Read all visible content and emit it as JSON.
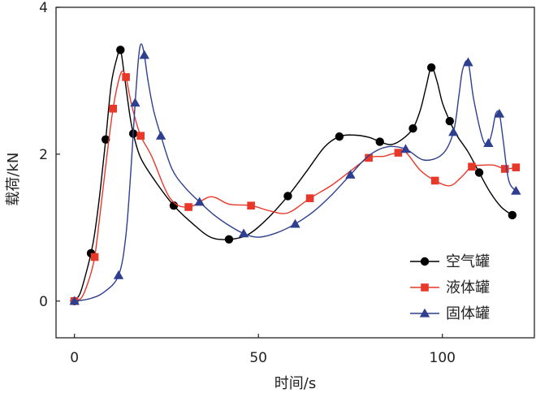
{
  "chart_data": {
    "type": "line",
    "xlabel": "时间/s",
    "ylabel": "载荷/kN",
    "xlim": [
      -5,
      125
    ],
    "ylim": [
      -0.5,
      4
    ],
    "xticks": [
      "0",
      "50",
      "100"
    ],
    "yticks": [
      "0",
      "2",
      "4"
    ],
    "grid": false,
    "legend_position": "bottom-right",
    "series": [
      {
        "name": "空气罐",
        "color": "#000000",
        "marker": "circle",
        "x": [
          0,
          1.5,
          3,
          4.5,
          5.5,
          7,
          8.5,
          10,
          11.5,
          12.5,
          13.5,
          15,
          16,
          18,
          22,
          27,
          32,
          37,
          42,
          47,
          52,
          58,
          63,
          68,
          72,
          76,
          80,
          83,
          86,
          89,
          92,
          94,
          95.5,
          97,
          98.5,
          100,
          102,
          104,
          107,
          110,
          113,
          116,
          119
        ],
        "y": [
          0,
          0.1,
          0.35,
          0.65,
          0.92,
          1.5,
          2.2,
          2.95,
          3.3,
          3.42,
          3.1,
          2.55,
          2.28,
          1.95,
          1.63,
          1.3,
          1.06,
          0.87,
          0.84,
          0.9,
          1.1,
          1.43,
          1.76,
          2.1,
          2.24,
          2.26,
          2.23,
          2.17,
          2.13,
          2.2,
          2.35,
          2.6,
          2.9,
          3.18,
          3.0,
          2.7,
          2.45,
          2.25,
          2.03,
          1.75,
          1.48,
          1.28,
          1.17
        ]
      },
      {
        "name": "液体罐",
        "color": "#e8382a",
        "marker": "square",
        "x": [
          0,
          2,
          4,
          5.5,
          7,
          9,
          10.5,
          12,
          13,
          14,
          15,
          16,
          18,
          21,
          26,
          31,
          37,
          42,
          48,
          53,
          58,
          64,
          70,
          75,
          80,
          84,
          86,
          88,
          90,
          94,
          98,
          102,
          105,
          108,
          111,
          114,
          117,
          120
        ],
        "y": [
          0,
          0.05,
          0.3,
          0.6,
          1.2,
          2.05,
          2.62,
          3.0,
          3.13,
          3.05,
          2.8,
          2.58,
          2.25,
          1.97,
          1.4,
          1.28,
          1.42,
          1.32,
          1.3,
          1.23,
          1.2,
          1.4,
          1.58,
          1.77,
          1.95,
          1.97,
          2.0,
          2.02,
          2.03,
          1.78,
          1.64,
          1.57,
          1.68,
          1.83,
          1.85,
          1.85,
          1.8,
          1.82
        ]
      },
      {
        "name": "固体罐",
        "color": "#2e3f8f",
        "marker": "triangle",
        "x": [
          0,
          4,
          8,
          12,
          14,
          15.5,
          16.5,
          17.5,
          18.2,
          19,
          20,
          21.5,
          23.5,
          26.5,
          30,
          34,
          38,
          42,
          46,
          50,
          55,
          60,
          65,
          70,
          75,
          80,
          85,
          90,
          95,
          100,
          103,
          104.5,
          105.5,
          107,
          108.5,
          111,
          112.5,
          113.5,
          114.5,
          115.5,
          116.5,
          118,
          120
        ],
        "y": [
          0,
          0.03,
          0.12,
          0.35,
          0.9,
          1.9,
          2.7,
          3.35,
          3.5,
          3.35,
          3.0,
          2.6,
          2.25,
          1.8,
          1.55,
          1.35,
          1.17,
          1.03,
          0.92,
          0.87,
          0.93,
          1.05,
          1.22,
          1.45,
          1.72,
          1.98,
          2.1,
          2.07,
          1.92,
          2.0,
          2.3,
          2.8,
          3.15,
          3.25,
          2.75,
          2.2,
          2.15,
          2.3,
          2.55,
          2.55,
          2.2,
          1.65,
          1.5
        ]
      }
    ]
  }
}
